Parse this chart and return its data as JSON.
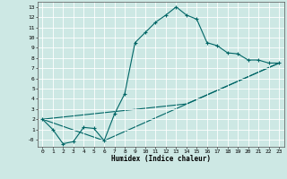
{
  "xlabel": "Humidex (Indice chaleur)",
  "bg_color": "#cde8e4",
  "grid_color": "#b0d4ce",
  "line_color": "#006666",
  "xlim": [
    -0.5,
    23.5
  ],
  "ylim": [
    -0.7,
    13.5
  ],
  "xticks": [
    0,
    1,
    2,
    3,
    4,
    5,
    6,
    7,
    8,
    9,
    10,
    11,
    12,
    13,
    14,
    15,
    16,
    17,
    18,
    19,
    20,
    21,
    22,
    23
  ],
  "yticks": [
    0,
    1,
    2,
    3,
    4,
    5,
    6,
    7,
    8,
    9,
    10,
    11,
    12,
    13
  ],
  "ytick_labels": [
    "-0",
    "1",
    "2",
    "3",
    "4",
    "5",
    "6",
    "7",
    "8",
    "9",
    "10",
    "11",
    "12",
    "13"
  ],
  "line1_x": [
    0,
    1,
    2,
    3,
    4,
    5,
    6,
    7,
    8,
    9,
    10,
    11,
    12,
    13,
    14,
    15,
    16,
    17,
    18,
    19,
    20,
    21,
    22,
    23
  ],
  "line1_y": [
    2.0,
    1.0,
    -0.4,
    -0.2,
    1.2,
    1.1,
    -0.1,
    2.5,
    4.5,
    9.5,
    10.5,
    11.5,
    12.2,
    13.0,
    12.2,
    11.8,
    9.5,
    9.2,
    8.5,
    8.4,
    7.8,
    7.8,
    7.5,
    7.5
  ],
  "line2_x": [
    0,
    6,
    23
  ],
  "line2_y": [
    2.0,
    -0.1,
    7.5
  ],
  "line3_x": [
    0,
    14,
    23
  ],
  "line3_y": [
    2.0,
    3.5,
    7.5
  ]
}
